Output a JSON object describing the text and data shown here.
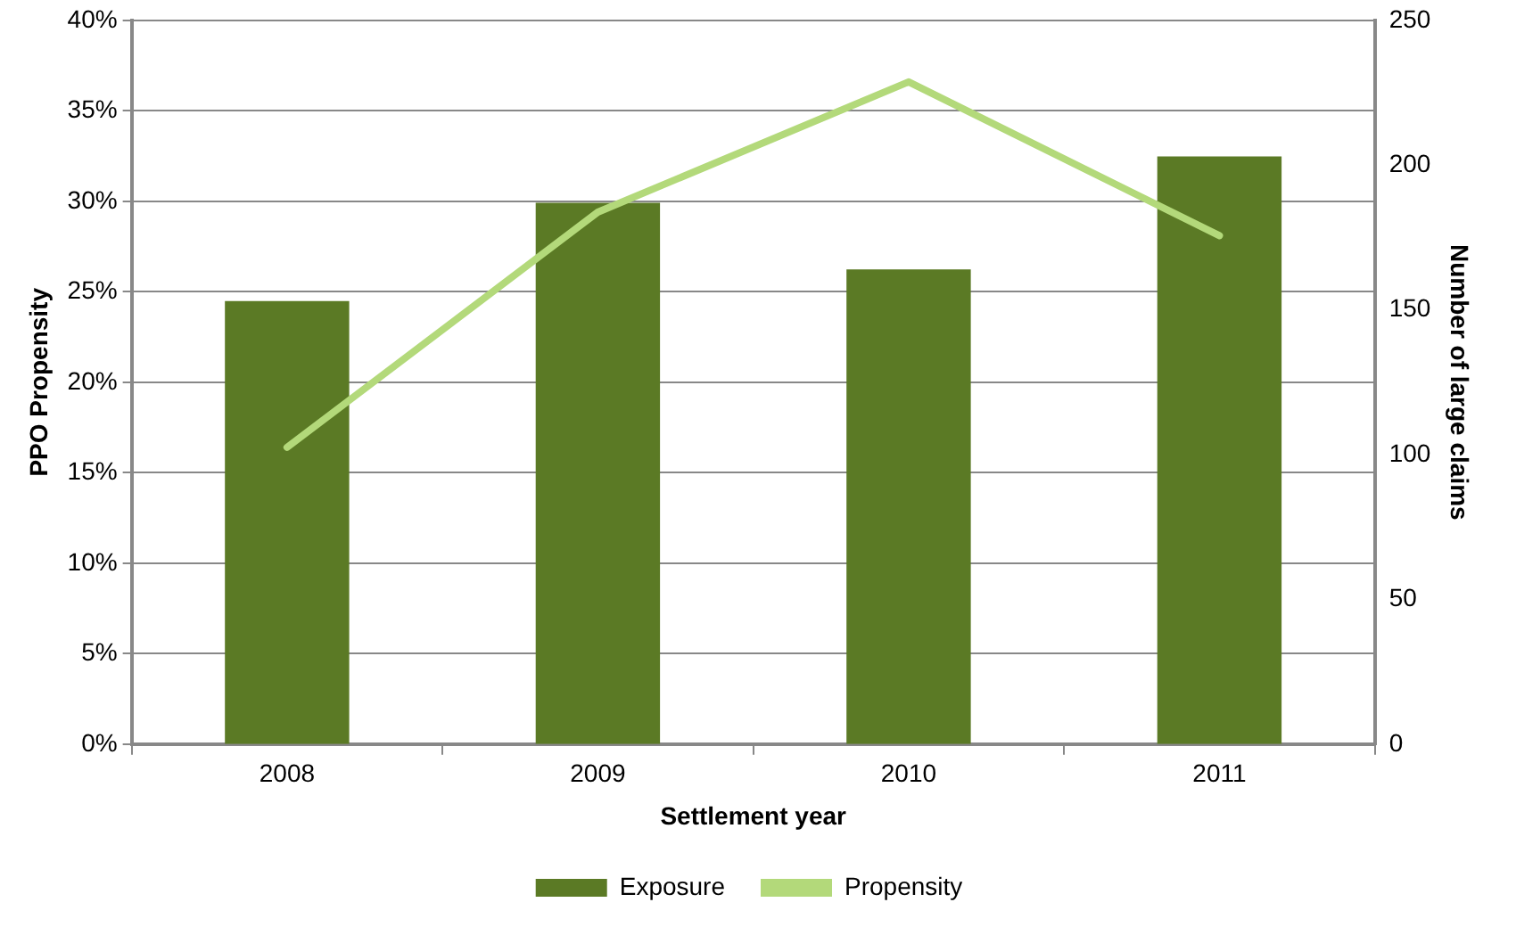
{
  "chart_data": {
    "type": "bar",
    "xlabel": "Settlement year",
    "ylabel": "PPO Propensity",
    "y2label": "Number of large claims",
    "categories": [
      "2008",
      "2009",
      "2010",
      "2011"
    ],
    "series": [
      {
        "name": "Exposure",
        "axis": "y2",
        "color": "#5b7a25",
        "values": [
          153,
          187,
          164,
          203
        ]
      },
      {
        "name": "Propensity",
        "type": "line",
        "axis": "y",
        "color": "#b3d97a",
        "values": [
          16.4,
          29.4,
          36.6,
          28.1
        ]
      }
    ],
    "ylim": [
      0,
      40
    ],
    "yticks": [
      {
        "value": 0,
        "label": "0%"
      },
      {
        "value": 5,
        "label": "5%"
      },
      {
        "value": 10,
        "label": "10%"
      },
      {
        "value": 15,
        "label": "15%"
      },
      {
        "value": 20,
        "label": "20%"
      },
      {
        "value": 25,
        "label": "25%"
      },
      {
        "value": 30,
        "label": "30%"
      },
      {
        "value": 35,
        "label": "35%"
      },
      {
        "value": 40,
        "label": "40%"
      }
    ],
    "y2lim": [
      0,
      250
    ],
    "y2ticks": [
      0,
      50,
      100,
      150,
      200,
      250
    ],
    "grid": "y",
    "legend": "bottom",
    "marker": "none"
  }
}
